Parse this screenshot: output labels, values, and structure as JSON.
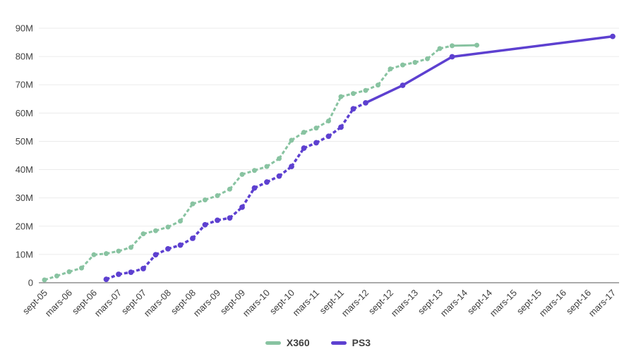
{
  "chart_data": {
    "type": "line",
    "xlabel": "",
    "ylabel": "",
    "ylim": [
      0,
      90
    ],
    "grid": true,
    "legend_position": "bottom",
    "grid_color": "#ebebeb",
    "baseline_color": "#8f8f8f",
    "label_color": "#424242",
    "y_tick_labels": [
      "0",
      "10M",
      "20M",
      "30M",
      "40M",
      "50M",
      "60M",
      "70M",
      "80M",
      "90M"
    ],
    "x_tick_labels": [
      "sept-05",
      "mars-06",
      "sept-06",
      "mars-07",
      "sept-07",
      "mars-08",
      "sept-08",
      "mars-09",
      "sept-09",
      "mars-10",
      "sept-10",
      "mars-11",
      "sept-11",
      "mars-12",
      "sept-12",
      "mars-13",
      "sept-13",
      "mars-14",
      "sept-14",
      "mars-15",
      "sept-15",
      "mars-16",
      "sept-16",
      "mars-17"
    ],
    "x_unit": "quarter (q = quarters after sept-05)",
    "series": [
      {
        "name": "X360",
        "color": "#88c3a1",
        "points": [
          [
            0,
            "sept-05",
            1.0
          ],
          [
            1,
            "déc-05",
            2.4
          ],
          [
            2,
            "mars-06",
            3.9
          ],
          [
            3,
            "juin-06",
            5.2
          ],
          [
            4,
            "sept-06",
            9.9
          ],
          [
            5,
            "déc-06",
            10.3
          ],
          [
            6,
            "mars-07",
            11.2
          ],
          [
            7,
            "juin-07",
            12.5
          ],
          [
            8,
            "sept-07",
            17.3
          ],
          [
            9,
            "déc-07",
            18.4
          ],
          [
            10,
            "mars-08",
            19.7
          ],
          [
            11,
            "juin-08",
            21.8
          ],
          [
            12,
            "sept-08",
            27.9
          ],
          [
            13,
            "déc-08",
            29.3
          ],
          [
            14,
            "mars-09",
            30.8
          ],
          [
            15,
            "juin-09",
            33.1
          ],
          [
            16,
            "sept-09",
            38.3
          ],
          [
            17,
            "déc-09",
            39.7
          ],
          [
            18,
            "mars-10",
            41.1
          ],
          [
            19,
            "juin-10",
            43.9
          ],
          [
            20,
            "sept-10",
            50.4
          ],
          [
            21,
            "déc-10",
            53.2
          ],
          [
            22,
            "mars-11",
            54.7
          ],
          [
            23,
            "juin-11",
            57.2
          ],
          [
            24,
            "sept-11",
            65.8
          ],
          [
            25,
            "déc-11",
            66.9
          ],
          [
            26,
            "mars-12",
            68.0
          ],
          [
            27,
            "juin-12",
            69.9
          ],
          [
            28,
            "sept-12",
            75.6
          ],
          [
            29,
            "déc-12",
            77.0
          ],
          [
            30,
            "mars-13",
            77.9
          ],
          [
            31,
            "juin-13",
            79.2
          ],
          [
            32,
            "sept-13",
            82.8
          ],
          [
            33,
            "déc-13",
            83.8
          ],
          [
            35,
            "juin-14",
            84.0
          ]
        ]
      },
      {
        "name": "PS3",
        "color": "#5d40d0",
        "points": [
          [
            5,
            "déc-06",
            1.2
          ],
          [
            6,
            "mars-07",
            3.0
          ],
          [
            7,
            "juin-07",
            3.7
          ],
          [
            8,
            "sept-07",
            5.0
          ],
          [
            9,
            "déc-07",
            9.9
          ],
          [
            10,
            "mars-08",
            12.0
          ],
          [
            11,
            "juin-08",
            13.3
          ],
          [
            12,
            "sept-08",
            15.7
          ],
          [
            13,
            "déc-08",
            20.5
          ],
          [
            14,
            "mars-09",
            22.1
          ],
          [
            15,
            "juin-09",
            22.9
          ],
          [
            16,
            "sept-09",
            26.7
          ],
          [
            17,
            "déc-09",
            33.5
          ],
          [
            18,
            "mars-10",
            35.6
          ],
          [
            19,
            "juin-10",
            37.7
          ],
          [
            20,
            "sept-10",
            41.1
          ],
          [
            21,
            "déc-10",
            47.6
          ],
          [
            22,
            "mars-11",
            49.5
          ],
          [
            23,
            "juin-11",
            51.8
          ],
          [
            24,
            "sept-11",
            55.0
          ],
          [
            25,
            "déc-11",
            61.5
          ],
          [
            26,
            "mars-12",
            63.6
          ],
          [
            29,
            "déc-12",
            69.8
          ],
          [
            33,
            "déc-13",
            79.9
          ],
          [
            46,
            "mars-17",
            87.1
          ]
        ]
      }
    ]
  }
}
